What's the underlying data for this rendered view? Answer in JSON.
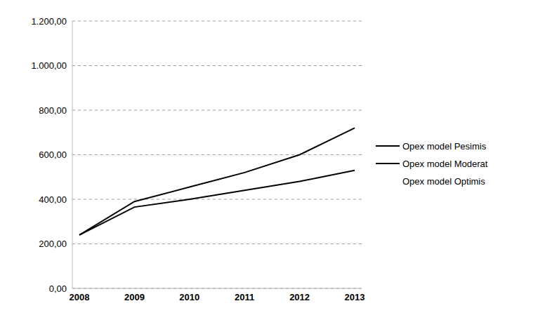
{
  "chart_data": {
    "type": "line",
    "categories": [
      "2008",
      "2009",
      "2010",
      "2011",
      "2012",
      "2013"
    ],
    "series": [
      {
        "name": "Opex model Pesimis",
        "color": "#000000",
        "values": [
          240,
          390,
          455,
          520,
          600,
          720
        ]
      },
      {
        "name": "Opex model Moderat",
        "color": "#000000",
        "values": [
          240,
          365,
          400,
          440,
          480,
          530
        ]
      },
      {
        "name": "Opex model Optimis",
        "color": "#ffffff",
        "values": [
          null,
          null,
          null,
          null,
          null,
          null
        ]
      }
    ],
    "ylim": [
      0,
      1200
    ],
    "yticks": [
      {
        "value": 0,
        "label": "0,00"
      },
      {
        "value": 200,
        "label": "200,00"
      },
      {
        "value": 400,
        "label": "400,00"
      },
      {
        "value": 600,
        "label": "600,00"
      },
      {
        "value": 800,
        "label": "800,00"
      },
      {
        "value": 1000,
        "label": "1.000,00"
      },
      {
        "value": 1200,
        "label": "1.200,00"
      }
    ],
    "grid": true,
    "legend": "right",
    "marker": "none",
    "line_style": "solid"
  }
}
